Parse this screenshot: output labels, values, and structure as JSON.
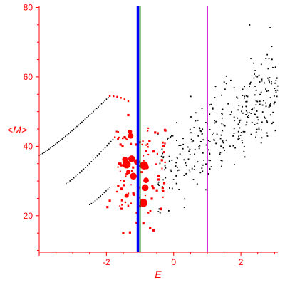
{
  "chart_data": {
    "type": "scatter",
    "title": "",
    "xlabel": "E",
    "ylabel": "<M>",
    "xlim": [
      -4.0,
      3.1
    ],
    "ylim": [
      9.5,
      80.5
    ],
    "x_ticks": [
      -2,
      0,
      2
    ],
    "y_ticks": [
      20,
      40,
      60,
      80
    ],
    "grid": false,
    "colors": {
      "axis": "#ff0000",
      "black_points": "#000000",
      "red_points": "#ff0000",
      "line_blue": "#0000ff",
      "line_green": "#008000",
      "line_magenta": "#cc00cc"
    },
    "vertical_lines": [
      {
        "x": -1.08,
        "color": "#0000ff"
      },
      {
        "x": -1.05,
        "color": "#0000ff"
      },
      {
        "x": -1.0,
        "color": "#008000"
      },
      {
        "x": 1.0,
        "color": "#cc00cc"
      }
    ],
    "black_curves": [
      {
        "x_start": -4.0,
        "x_end": -1.9,
        "y_start": 37.4,
        "y_end": 54.5,
        "points": 44
      },
      {
        "x_start": -3.2,
        "x_end": -1.75,
        "y_start": 29.3,
        "y_end": 42.6,
        "points": 26
      },
      {
        "x_start": -2.5,
        "x_end": -1.9,
        "y_start": 23.2,
        "y_end": 28.2,
        "points": 12
      }
    ],
    "black_cloud": {
      "points": 330,
      "x_range": [
        -0.5,
        3.1
      ],
      "y_center_at_x0": 34.5,
      "slope": 7.8,
      "spread": 6.0
    },
    "red_curves": [
      {
        "x_start": -1.9,
        "x_end": -1.35,
        "y_start": 54.5,
        "y_end": 53.0,
        "points": 6
      },
      {
        "x_start": -1.75,
        "x_end": -1.4,
        "y_start": 42.6,
        "y_end": 42.0,
        "points": 4
      }
    ],
    "red_big": [
      [
        -1.3,
        44.2
      ],
      [
        -1.28,
        43.0
      ],
      [
        -1.25,
        36.4
      ],
      [
        -1.4,
        34.8
      ],
      [
        -1.35,
        32.6
      ],
      [
        -1.1,
        35.5
      ],
      [
        -1.2,
        31.4
      ],
      [
        -0.88,
        34.5
      ],
      [
        -0.8,
        34.0
      ],
      [
        -0.82,
        30.2
      ],
      [
        -0.85,
        28.1
      ],
      [
        -0.9,
        23.7
      ],
      [
        -1.4,
        25.8
      ],
      [
        -1.45,
        36.2
      ]
    ],
    "red_small_count": 75,
    "red_small_region": {
      "x_range": [
        -2.2,
        -0.2
      ],
      "y_range": [
        14.5,
        46.0
      ]
    },
    "red_small_seeded": [
      [
        -1.35,
        49.0
      ],
      [
        -1.52,
        40.0
      ],
      [
        -1.12,
        40.5
      ],
      [
        -1.62,
        35.0
      ],
      [
        -1.48,
        30.0
      ],
      [
        -1.55,
        22.0
      ],
      [
        -1.5,
        15.0
      ],
      [
        -1.3,
        15.2
      ],
      [
        -0.6,
        15.8
      ],
      [
        -0.7,
        16.5
      ],
      [
        -0.9,
        17.8
      ],
      [
        -1.1,
        18.0
      ],
      [
        -1.58,
        40.5
      ],
      [
        -0.55,
        44.0
      ],
      [
        -0.3,
        40.0
      ],
      [
        -0.35,
        36.0
      ],
      [
        -0.45,
        31.5
      ],
      [
        -0.5,
        27.3
      ],
      [
        -0.38,
        21.9
      ],
      [
        -1.2,
        26.5
      ],
      [
        -0.65,
        24.9
      ],
      [
        -1.9,
        24.3
      ],
      [
        -1.97,
        22.5
      ],
      [
        -1.65,
        28.5
      ],
      [
        -0.28,
        29.4
      ],
      [
        -0.6,
        38.5
      ]
    ]
  }
}
